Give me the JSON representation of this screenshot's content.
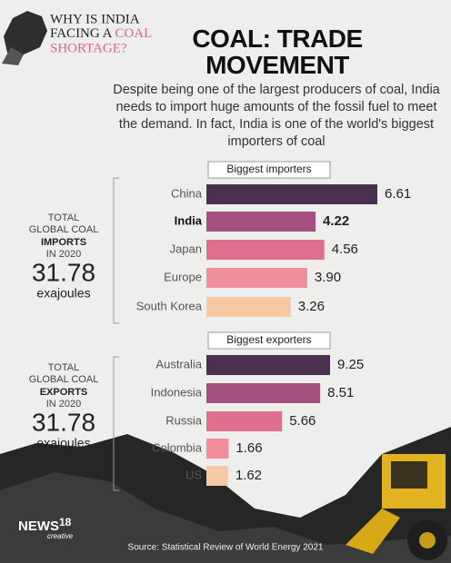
{
  "header": {
    "line1": "WHY IS INDIA",
    "line2": "FACING A",
    "line2_highlight": "COAL",
    "line3": "SHORTAGE?"
  },
  "title": "COAL: TRADE MOVEMENT",
  "subtitle": "Despite being one of the largest producers of coal, India needs to import huge amounts of the fossil fuel to meet the demand. In fact, India is one of the world's biggest importers of coal",
  "chart_data": [
    {
      "type": "bar",
      "title": "Biggest importers",
      "categories": [
        "China",
        "India",
        "Japan",
        "Europe",
        "South Korea"
      ],
      "values": [
        6.61,
        4.22,
        4.56,
        3.9,
        3.26
      ],
      "value_labels": [
        "6.61",
        "4.22",
        "4.56",
        "3.90",
        "3.26"
      ],
      "colors": [
        "#4b2f4f",
        "#a4517f",
        "#df6f8e",
        "#f08f9b",
        "#f7c8a4"
      ],
      "highlight": "India",
      "stat": {
        "line1": "TOTAL",
        "line2": "GLOBAL COAL",
        "line3": "IMPORTS",
        "line4": "IN 2020",
        "value": "31.78",
        "unit": "exajoules"
      }
    },
    {
      "type": "bar",
      "title": "Biggest exporters",
      "categories": [
        "Australia",
        "Indonesia",
        "Russia",
        "Colombia",
        "US"
      ],
      "values": [
        9.25,
        8.51,
        5.66,
        1.66,
        1.62
      ],
      "value_labels": [
        "9.25",
        "8.51",
        "5.66",
        "1.66",
        "1.62"
      ],
      "colors": [
        "#4b2f4f",
        "#a4517f",
        "#df6f8e",
        "#f08f9b",
        "#f7c8a4"
      ],
      "stat": {
        "line1": "TOTAL",
        "line2": "GLOBAL COAL",
        "line3": "EXPORTS",
        "line4": "IN 2020",
        "value": "31.78",
        "unit": "exajoules"
      }
    }
  ],
  "source": "Source: Statistical Review of World Energy 2021",
  "logo": {
    "brand": "NEWS",
    "number": "18",
    "tag": "creative"
  }
}
